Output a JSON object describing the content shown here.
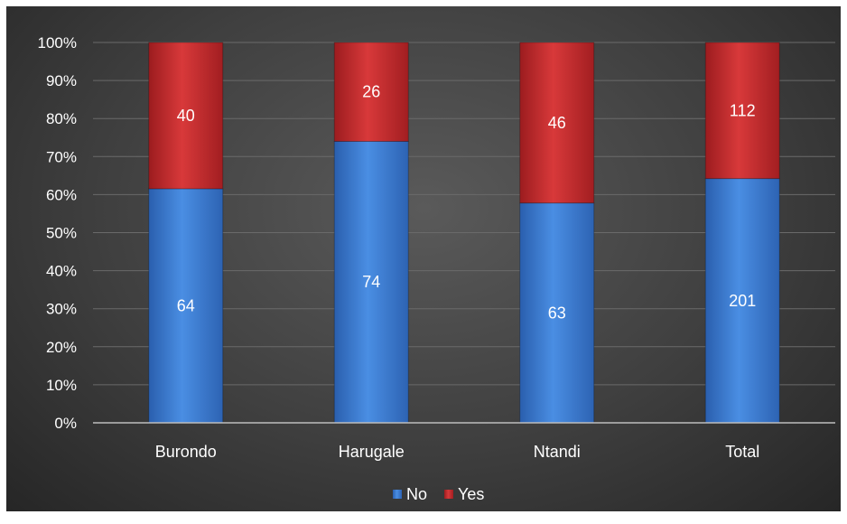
{
  "chart_data": {
    "type": "bar",
    "stacking": "percent",
    "categories": [
      "Burondo",
      "Harugale",
      "Ntandi",
      "Total"
    ],
    "series": [
      {
        "name": "No",
        "values": [
          64,
          74,
          63,
          201
        ],
        "color": "#3d7fd6"
      },
      {
        "name": "Yes",
        "values": [
          40,
          26,
          46,
          112
        ],
        "color": "#c8292b"
      }
    ],
    "y_ticks": [
      "0%",
      "10%",
      "20%",
      "30%",
      "40%",
      "50%",
      "60%",
      "70%",
      "80%",
      "90%",
      "100%"
    ],
    "ylim": [
      0,
      100
    ],
    "grid": true,
    "legend": "bottom-center",
    "background": "#3f3f3f"
  }
}
